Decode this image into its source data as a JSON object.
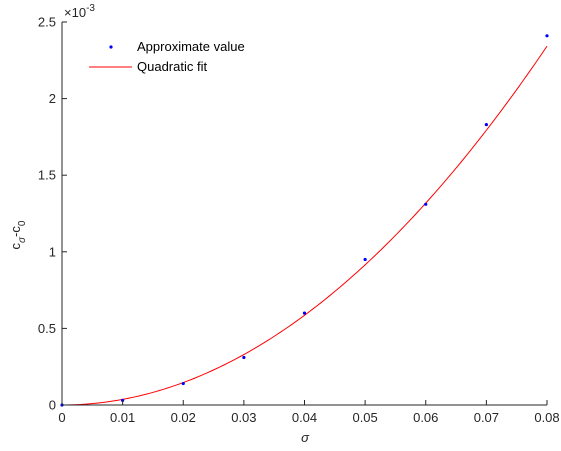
{
  "chart_data": {
    "type": "scatter",
    "xlabel": "σ",
    "ylabel": {
      "base": "c",
      "sub1": "σ",
      "mid": "-c",
      "sub2": "0"
    },
    "y_exponent_label": {
      "base": "×10",
      "exp": "-3"
    },
    "xlim": [
      0,
      0.08
    ],
    "ylim": [
      0,
      0.0025
    ],
    "x_ticks": [
      "0",
      "0.01",
      "0.02",
      "0.03",
      "0.04",
      "0.05",
      "0.06",
      "0.07",
      "0.08"
    ],
    "y_ticks": [
      "0",
      "0.5",
      "1",
      "1.5",
      "2",
      "2.5"
    ],
    "grid": false,
    "legend_position": "top-left",
    "series": [
      {
        "name": "Approximate value",
        "kind": "points",
        "color": "#0000ff",
        "x": [
          0,
          0.01,
          0.02,
          0.03,
          0.04,
          0.05,
          0.06,
          0.07,
          0.08
        ],
        "y": [
          0,
          3e-05,
          0.00014,
          0.00031,
          0.0006,
          0.00095,
          0.00131,
          0.00183,
          0.00241
        ]
      },
      {
        "name": "Quadratic fit",
        "kind": "line",
        "color": "#ff0000",
        "fit": {
          "a": 0.366,
          "b": 0.0,
          "c": 0.0
        }
      }
    ]
  }
}
